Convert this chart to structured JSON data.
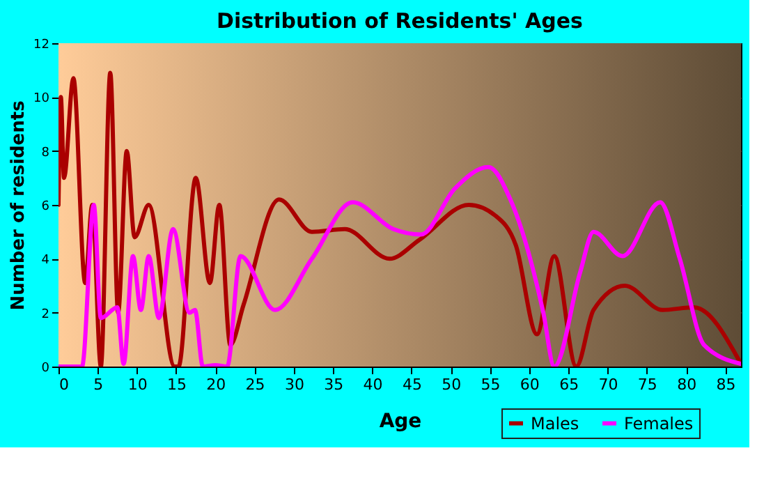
{
  "chart_data": {
    "type": "line",
    "title": "Distribution of Residents' Ages",
    "xlabel": "Age",
    "ylabel": "Number of residents",
    "xlim": [
      0,
      87
    ],
    "xticks": [
      0,
      5,
      10,
      15,
      20,
      25,
      30,
      35,
      40,
      45,
      50,
      55,
      60,
      65,
      70,
      75,
      80,
      85
    ],
    "ylim": [
      0,
      12
    ],
    "yticks": [
      0,
      2,
      4,
      6,
      8,
      10,
      12
    ],
    "grid": true,
    "legend": "bottom right",
    "marker": "none",
    "line_style": "solid",
    "series": [
      {
        "name": "Males",
        "color": "#aa0000",
        "x": [
          0,
          0.3,
          0.7,
          1.9,
          3.4,
          4.3,
          5.4,
          6.6,
          7.6,
          8.7,
          9.7,
          11.5,
          14.8,
          15.3,
          17.5,
          19.3,
          20.5,
          21.9,
          23.6,
          28.1,
          32.3,
          36.5,
          42.2,
          46,
          52.3,
          55.7,
          58.3,
          61,
          63.2,
          66,
          68.2,
          72.2,
          77,
          81,
          87
        ],
        "values": [
          6,
          10,
          7,
          10.7,
          3.1,
          6,
          0,
          10.9,
          2,
          8,
          4.8,
          6,
          0,
          0,
          7,
          3.1,
          6,
          0.8,
          2.3,
          6.2,
          5,
          5.1,
          4,
          4.7,
          6,
          5.6,
          4.5,
          1.2,
          4.1,
          0,
          2.1,
          3,
          2.1,
          2.2,
          0.1
        ]
      },
      {
        "name": "Females",
        "color": "#ff00ff",
        "x": [
          0,
          3,
          4.5,
          5.4,
          7.5,
          8.3,
          9.5,
          10.5,
          11.5,
          12.8,
          14.6,
          16.7,
          17.4,
          18.4,
          20,
          21.5,
          23.2,
          27.6,
          32.3,
          37.5,
          42.7,
          46.2,
          50.5,
          54.8,
          57.6,
          61.8,
          63.2,
          66.5,
          68.2,
          71.9,
          76.7,
          79.2,
          82.3,
          87
        ],
        "values": [
          0,
          0,
          6,
          1.8,
          2.2,
          0.1,
          4.1,
          2.1,
          4.1,
          1.8,
          5.1,
          2,
          2.1,
          0,
          0.05,
          0,
          4.1,
          2.1,
          4,
          6.1,
          5.1,
          4.9,
          6.6,
          7.4,
          6.2,
          2,
          0,
          3.5,
          5,
          4.1,
          6.1,
          4,
          0.8,
          0.1
        ]
      }
    ]
  }
}
